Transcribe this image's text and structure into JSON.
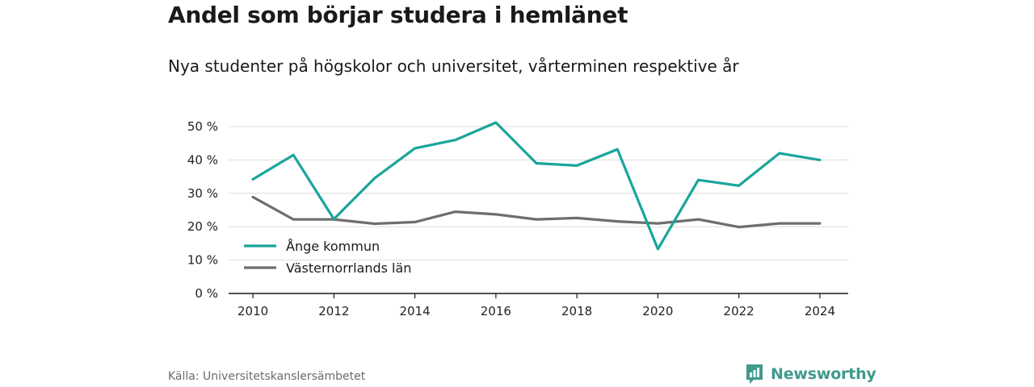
{
  "title": "Andel som börjar studera i hemlänet",
  "subtitle": "Nya studenter på högskolor och universitet, vårterminen respektive år",
  "source": "Källa: Universitetskanslersämbetet",
  "brand": {
    "name": "Newsworthy",
    "icon": "newsworthy-logo-icon",
    "color": "#3f9a8a"
  },
  "chart_data": {
    "type": "line",
    "x": [
      2010,
      2011,
      2012,
      2013,
      2014,
      2015,
      2016,
      2017,
      2018,
      2019,
      2020,
      2021,
      2022,
      2023,
      2024
    ],
    "x_tick_labels": [
      "2010",
      "2012",
      "2014",
      "2016",
      "2018",
      "2020",
      "2022",
      "2024"
    ],
    "y_tick_labels": [
      "0 %",
      "10 %",
      "20 %",
      "30 %",
      "40 %",
      "50 %"
    ],
    "ylim": [
      0,
      50
    ],
    "xlim": [
      2009.4,
      2024.7
    ],
    "grid": true,
    "legend_position": "bottom-left",
    "series": [
      {
        "name": "Ånge kommun",
        "color": "#1aa59a",
        "values": [
          34.2,
          41.5,
          22.3,
          34.5,
          43.5,
          46.0,
          51.2,
          39.0,
          38.3,
          43.2,
          13.3,
          34.0,
          32.3,
          42.0,
          40.0
        ]
      },
      {
        "name": "Västernorrlands län",
        "color": "#6e6e6e",
        "values": [
          28.9,
          22.2,
          22.2,
          20.9,
          21.4,
          24.5,
          23.7,
          22.2,
          22.6,
          21.6,
          21.0,
          22.2,
          19.9,
          21.0,
          21.0
        ]
      }
    ]
  }
}
